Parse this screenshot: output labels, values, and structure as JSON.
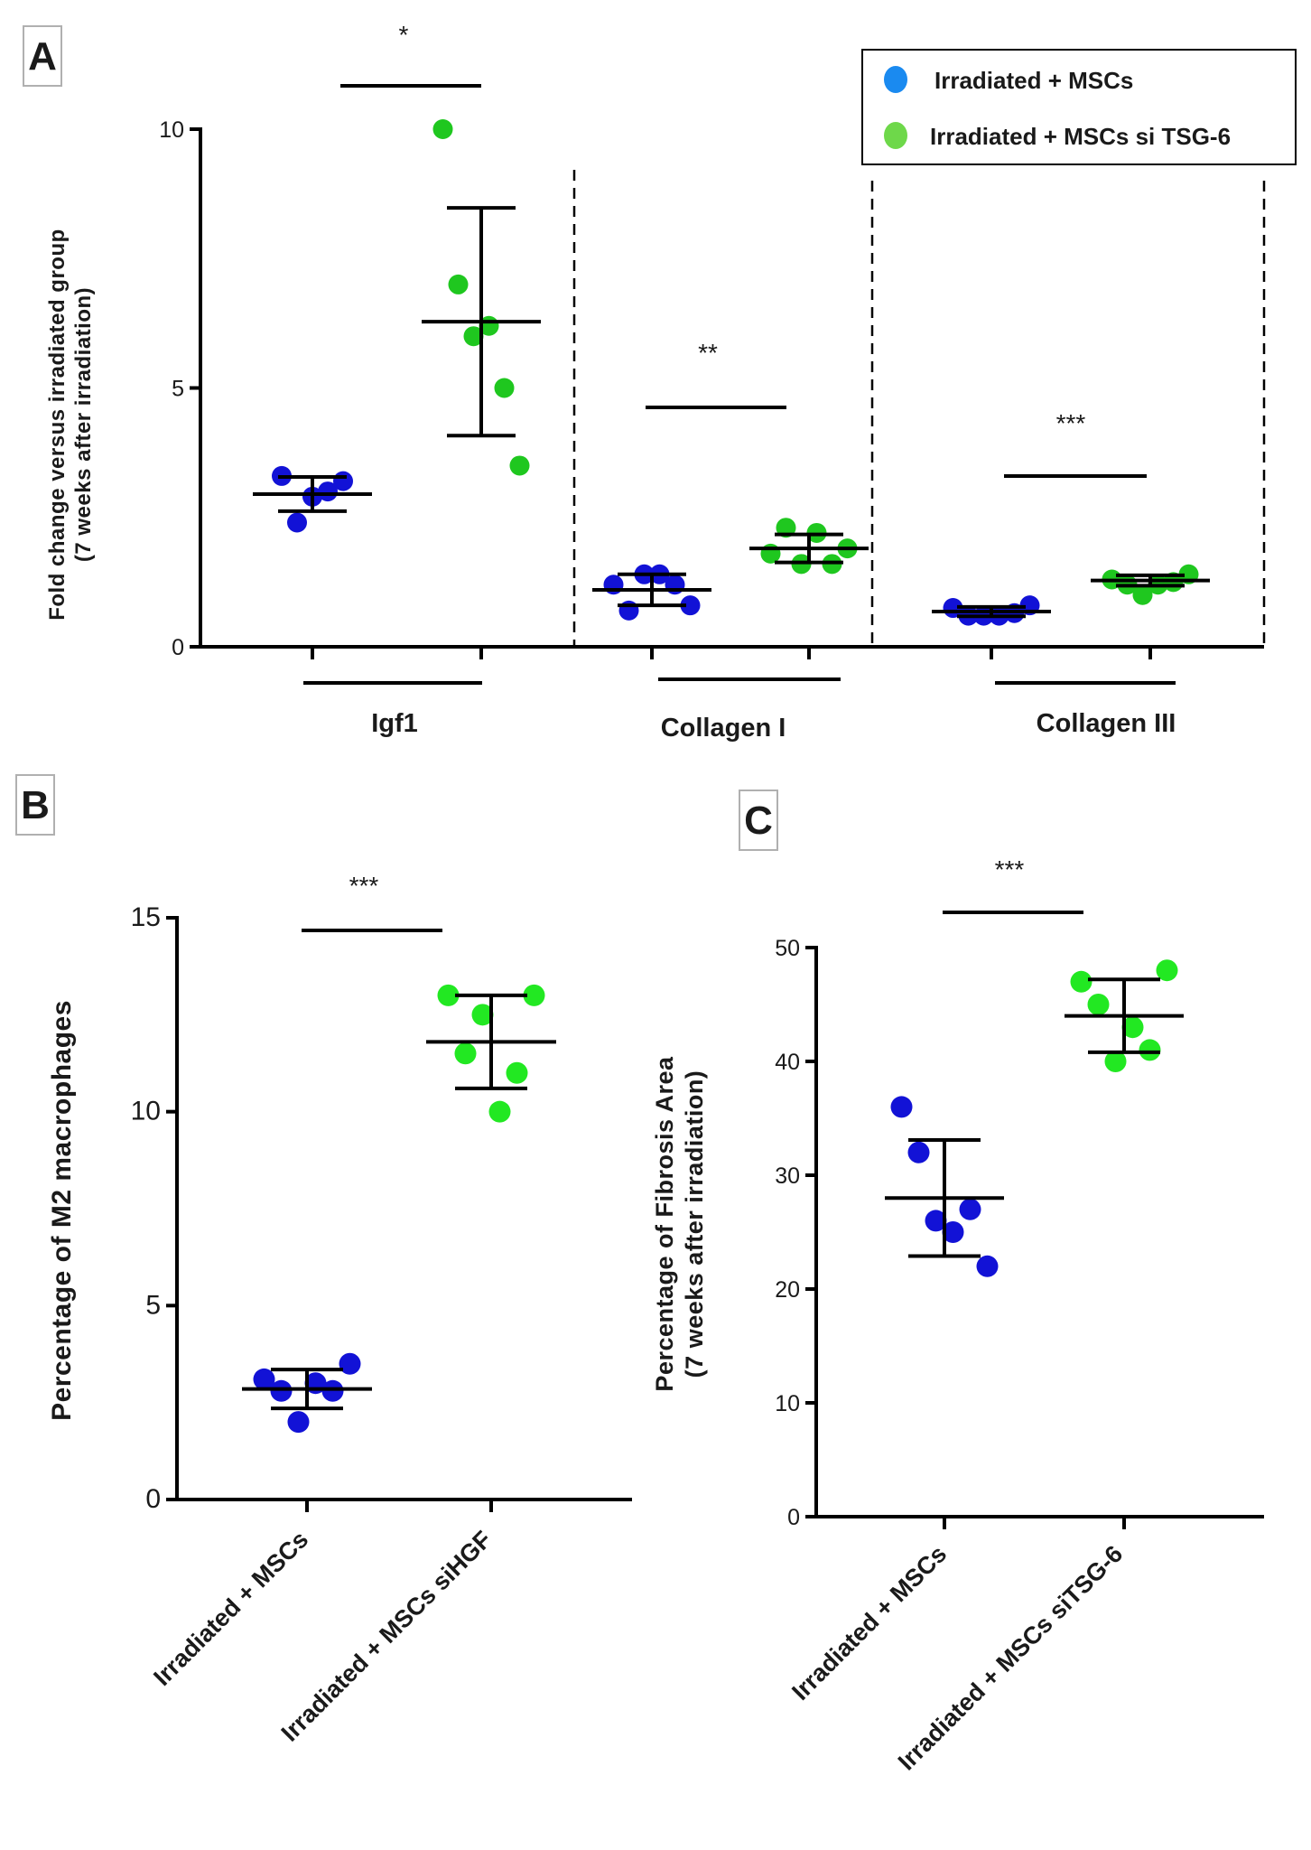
{
  "figure": {
    "panels": [
      "A",
      "B",
      "C"
    ]
  },
  "colors": {
    "blue": "#1212d6",
    "green": "#1fc71f",
    "green_bright": "#22e822",
    "blue_legend": "#1a8af0",
    "green_legend": "#6ed84a"
  },
  "chart_data": [
    {
      "panel": "A",
      "type": "scatter",
      "title": "",
      "ylabel_lines": [
        "Fold change versus irradiated group",
        "(7 weeks after irradiation)"
      ],
      "ylim": [
        0,
        10
      ],
      "yticks": [
        0,
        5,
        10
      ],
      "legend": [
        "Irradiated + MSCs",
        "Irradiated + MSCs si TSG-6"
      ],
      "legend_position": "top-right",
      "categories": [
        "Igf1",
        "Collagen I",
        "Collagen III"
      ],
      "significance": [
        "*",
        "**",
        "***"
      ],
      "series": [
        {
          "name": "Irradiated + MSCs",
          "color": "blue",
          "groups": [
            {
              "category": "Igf1",
              "points": [
                3.3,
                2.4,
                2.9,
                3.0,
                3.2
              ],
              "mean": 2.95,
              "sd": 0.33
            },
            {
              "category": "Collagen I",
              "points": [
                1.2,
                0.7,
                1.4,
                1.4,
                1.2,
                0.8
              ],
              "mean": 1.1,
              "sd": 0.3
            },
            {
              "category": "Collagen III",
              "points": [
                0.75,
                0.6,
                0.6,
                0.6,
                0.65,
                0.8
              ],
              "mean": 0.68,
              "sd": 0.09
            }
          ]
        },
        {
          "name": "Irradiated + MSCs si TSG-6",
          "color": "green",
          "groups": [
            {
              "category": "Igf1",
              "points": [
                10.0,
                7.0,
                6.0,
                6.2,
                5.0,
                3.5
              ],
              "mean": 6.28,
              "sd": 2.2
            },
            {
              "category": "Collagen I",
              "points": [
                1.8,
                2.3,
                1.6,
                2.2,
                1.6,
                1.9
              ],
              "mean": 1.9,
              "sd": 0.27
            },
            {
              "category": "Collagen III",
              "points": [
                1.3,
                1.2,
                1.0,
                1.2,
                1.25,
                1.4
              ],
              "mean": 1.28,
              "sd": 0.1
            }
          ]
        }
      ]
    },
    {
      "panel": "B",
      "type": "scatter",
      "title": "",
      "ylabel": "Percentage of M2 macrophages",
      "ylim": [
        0,
        15
      ],
      "yticks": [
        0,
        5,
        10,
        15
      ],
      "categories": [
        "Irradiated + MSCs",
        "Irradiated + MSCs siHGF"
      ],
      "significance": "***",
      "series": [
        {
          "name": "Irradiated + MSCs",
          "color": "blue",
          "points": [
            3.1,
            2.8,
            2.0,
            3.0,
            2.8,
            3.5
          ],
          "mean": 2.85,
          "sd": 0.5
        },
        {
          "name": "Irradiated + MSCs siHGF",
          "color": "green_bright",
          "points": [
            13.0,
            11.5,
            12.5,
            10.0,
            11.0,
            13.0
          ],
          "mean": 11.8,
          "sd": 1.2
        }
      ]
    },
    {
      "panel": "C",
      "type": "scatter",
      "title": "",
      "ylabel_lines": [
        "Percentage of Fibrosis Area",
        "(7 weeks after irradiation)"
      ],
      "ylim": [
        0,
        50
      ],
      "yticks": [
        0,
        10,
        20,
        30,
        40,
        50
      ],
      "categories": [
        "Irradiated + MSCs",
        "Irradiated + MSCs siTSG-6"
      ],
      "significance": "***",
      "series": [
        {
          "name": "Irradiated + MSCs",
          "color": "blue",
          "points": [
            36,
            32,
            26,
            25,
            27,
            22
          ],
          "mean": 28.0,
          "sd": 5.1
        },
        {
          "name": "Irradiated + MSCs siTSG-6",
          "color": "green_bright",
          "points": [
            47,
            45,
            40,
            43,
            41,
            48
          ],
          "mean": 44.0,
          "sd": 3.2
        }
      ]
    }
  ]
}
